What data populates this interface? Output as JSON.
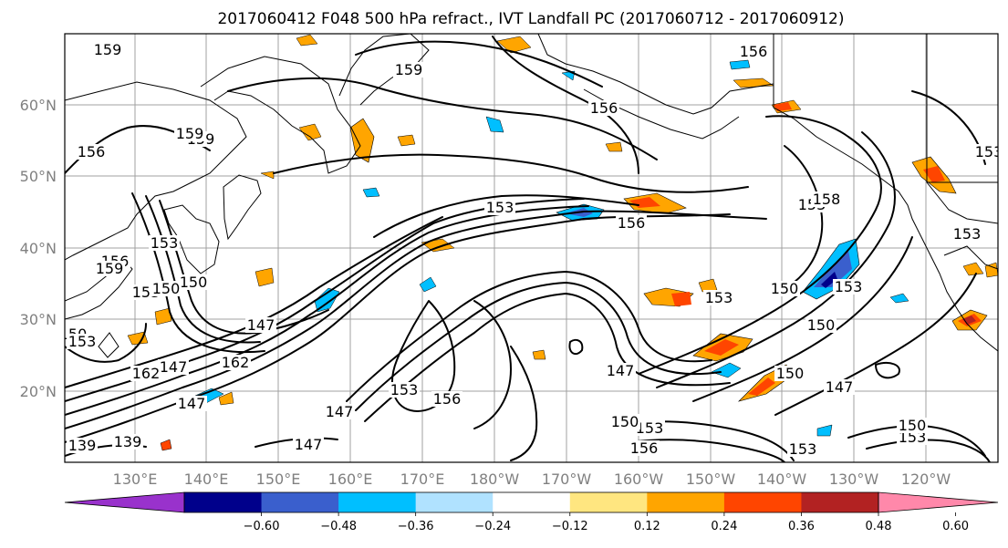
{
  "title": "2017060412 F048 500 hPa refract., IVT Landfall PC (2017060712 - 2017060912)",
  "lat_labels": [
    "60°N",
    "50°N",
    "40°N",
    "30°N",
    "20°N"
  ],
  "lon_labels": [
    "130°E",
    "140°E",
    "150°E",
    "160°E",
    "170°E",
    "180°W",
    "170°W",
    "160°W",
    "150°W",
    "140°W",
    "130°W",
    "120°W"
  ],
  "colorbar": {
    "ticks": [
      "−0.60",
      "−0.48",
      "−0.36",
      "−0.24",
      "−0.12",
      "0.12",
      "0.24",
      "0.36",
      "0.48",
      "0.60"
    ],
    "colors": [
      "#9932cc",
      "#00008b",
      "#3a5fcd",
      "#00bfff",
      "#b0e2ff",
      "#ffffff",
      "#ffe680",
      "#ffa500",
      "#ff4500",
      "#b22222",
      "#ff88aa"
    ]
  },
  "contour_labels": [
    "159",
    "159",
    "156",
    "156",
    "159",
    "156",
    "153",
    "156",
    "153",
    "153",
    "150",
    "153",
    "156",
    "147",
    "139",
    "159",
    "150",
    "147",
    "162",
    "162",
    "147",
    "153",
    "147",
    "156",
    "153",
    "147",
    "150",
    "150",
    "153",
    "147",
    "156",
    "153",
    "153",
    "150",
    "150",
    "147",
    "153",
    "150",
    "153",
    "153",
    "159",
    "139",
    "158",
    "150",
    "153"
  ]
}
